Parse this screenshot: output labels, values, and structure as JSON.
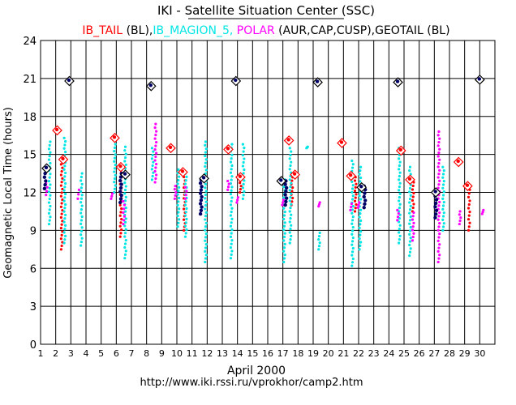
{
  "chart_data": {
    "type": "scatter",
    "title": "IKI - Satellite Situation Center (SSC)",
    "legend_entries": [
      {
        "text": "IB_TAIL",
        "color": "#ff0000"
      },
      {
        "text": " (BL),",
        "color": "#000000"
      },
      {
        "text": "IB_MAGION_5,",
        "color": "#00e5e5"
      },
      {
        "text": " POLAR",
        "color": "#ff00ff"
      },
      {
        "text": " (AUR,CAP,CUSP),GEOTAIL (BL)",
        "color": "#000000"
      }
    ],
    "ylabel": "Geomagnetic Local Time (hours)",
    "xlabel": "April 2000",
    "footer": "http://www.iki.rssi.ru/vprokhor/camp2.htm",
    "xlim": [
      1,
      31
    ],
    "ylim": [
      0,
      24
    ],
    "xticks": [
      1,
      2,
      3,
      4,
      5,
      6,
      7,
      8,
      9,
      10,
      11,
      12,
      13,
      14,
      15,
      16,
      17,
      18,
      19,
      20,
      21,
      22,
      23,
      24,
      25,
      26,
      27,
      28,
      29,
      30
    ],
    "yticks": [
      0,
      3,
      6,
      9,
      12,
      15,
      18,
      21,
      24
    ],
    "grid": true,
    "series": [
      {
        "name": "IB_TAIL",
        "color": "#ff0000",
        "marker": "dot",
        "columns": [
          [
            2.4,
            7.5,
            14.5
          ],
          [
            6.3,
            8.5,
            13.2
          ],
          [
            10.5,
            9.0,
            13.5
          ],
          [
            14.2,
            12.0,
            13.0
          ],
          [
            17.6,
            11.0,
            13.2
          ],
          [
            21.8,
            10.5,
            13.2
          ],
          [
            25.6,
            10.5,
            12.8
          ],
          [
            29.3,
            9.0,
            12.5
          ]
        ]
      },
      {
        "name": "IB_MAGION_5",
        "color": "#00e5e5",
        "marker": "dot",
        "columns": [
          [
            1.6,
            9.5,
            16.0
          ],
          [
            2.6,
            8.0,
            16.3
          ],
          [
            3.7,
            7.8,
            13.5
          ],
          [
            5.9,
            12.0,
            15.8
          ],
          [
            6.6,
            6.8,
            15.6
          ],
          [
            8.4,
            13.0,
            15.5
          ],
          [
            10.1,
            9.3,
            13.8
          ],
          [
            10.6,
            8.5,
            13.5
          ],
          [
            11.9,
            6.5,
            16.0
          ],
          [
            13.6,
            6.8,
            15.8
          ],
          [
            14.4,
            11.5,
            15.8
          ],
          [
            17.1,
            6.5,
            13.0
          ],
          [
            17.5,
            8.0,
            15.5
          ],
          [
            18.6,
            15.5,
            15.6
          ],
          [
            19.4,
            7.5,
            8.8
          ],
          [
            21.6,
            6.2,
            14.5
          ],
          [
            22.1,
            7.5,
            14.0
          ],
          [
            24.7,
            8.0,
            15.5
          ],
          [
            25.4,
            7.0,
            14.0
          ],
          [
            27.6,
            9.0,
            14.0
          ]
        ]
      },
      {
        "name": "POLAR",
        "color": "#ff00ff",
        "marker": "dot",
        "columns": [
          [
            1.4,
            11.8,
            12.7
          ],
          [
            3.5,
            11.5,
            12.2
          ],
          [
            5.7,
            11.5,
            11.9
          ],
          [
            6.5,
            9.5,
            11.3
          ],
          [
            8.6,
            12.8,
            17.4
          ],
          [
            9.9,
            11.5,
            12.5
          ],
          [
            10.6,
            11.5,
            12.4
          ],
          [
            13.4,
            12.2,
            12.9
          ],
          [
            14.0,
            11.2,
            11.6
          ],
          [
            17.0,
            11.0,
            11.4
          ],
          [
            19.4,
            10.9,
            11.2
          ],
          [
            21.5,
            10.6,
            11.1
          ],
          [
            22.0,
            10.8,
            11.2
          ],
          [
            24.6,
            9.8,
            10.6
          ],
          [
            25.6,
            8.2,
            10.4
          ],
          [
            27.3,
            6.5,
            16.8
          ],
          [
            28.7,
            9.5,
            10.5
          ],
          [
            30.2,
            10.3,
            10.6
          ]
        ]
      },
      {
        "name": "GEOTAIL",
        "color": "#000066",
        "marker": "dot",
        "columns": [
          [
            1.3,
            12.3,
            13.8
          ],
          [
            6.3,
            11.2,
            13.5
          ],
          [
            11.6,
            10.3,
            13.0
          ],
          [
            17.2,
            11.0,
            12.9
          ],
          [
            22.4,
            10.8,
            12.5
          ],
          [
            27.1,
            10.0,
            12.0
          ]
        ]
      }
    ],
    "markers": [
      {
        "x": 1.4,
        "y": 13.9,
        "color": "#000000"
      },
      {
        "x": 2.9,
        "y": 20.8,
        "color": "#000000"
      },
      {
        "x": 2.1,
        "y": 16.9,
        "color": "#ff0000"
      },
      {
        "x": 2.5,
        "y": 14.6,
        "color": "#ff0000"
      },
      {
        "x": 5.9,
        "y": 16.3,
        "color": "#ff0000"
      },
      {
        "x": 6.3,
        "y": 14.0,
        "color": "#ff0000"
      },
      {
        "x": 6.6,
        "y": 13.4,
        "color": "#000000"
      },
      {
        "x": 8.3,
        "y": 20.4,
        "color": "#000000"
      },
      {
        "x": 9.6,
        "y": 15.5,
        "color": "#ff0000"
      },
      {
        "x": 10.4,
        "y": 13.6,
        "color": "#ff0000"
      },
      {
        "x": 11.8,
        "y": 13.1,
        "color": "#000000"
      },
      {
        "x": 13.4,
        "y": 15.4,
        "color": "#ff0000"
      },
      {
        "x": 13.9,
        "y": 20.8,
        "color": "#000000"
      },
      {
        "x": 14.2,
        "y": 13.2,
        "color": "#ff0000"
      },
      {
        "x": 16.9,
        "y": 12.9,
        "color": "#000000"
      },
      {
        "x": 17.4,
        "y": 16.1,
        "color": "#ff0000"
      },
      {
        "x": 17.8,
        "y": 13.4,
        "color": "#ff0000"
      },
      {
        "x": 19.3,
        "y": 20.7,
        "color": "#000000"
      },
      {
        "x": 20.9,
        "y": 15.9,
        "color": "#ff0000"
      },
      {
        "x": 21.5,
        "y": 13.3,
        "color": "#ff0000"
      },
      {
        "x": 22.2,
        "y": 12.4,
        "color": "#000000"
      },
      {
        "x": 24.6,
        "y": 20.7,
        "color": "#000000"
      },
      {
        "x": 24.8,
        "y": 15.3,
        "color": "#ff0000"
      },
      {
        "x": 25.4,
        "y": 13.0,
        "color": "#ff0000"
      },
      {
        "x": 27.1,
        "y": 12.0,
        "color": "#000000"
      },
      {
        "x": 28.6,
        "y": 14.4,
        "color": "#ff0000"
      },
      {
        "x": 29.2,
        "y": 12.5,
        "color": "#ff0000"
      },
      {
        "x": 30.0,
        "y": 20.9,
        "color": "#000000"
      }
    ]
  }
}
